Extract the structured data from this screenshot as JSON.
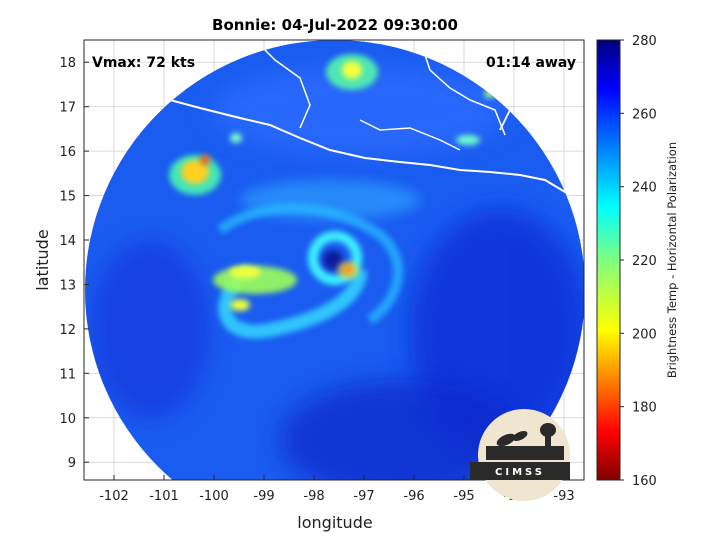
{
  "figure": {
    "title": "Bonnie: 04-Jul-2022 09:30:00",
    "xlabel": "longitude",
    "ylabel": "latitude",
    "annotations": {
      "vmax": "Vmax: 72 kts",
      "time_away": "01:14 away"
    },
    "colorbar": {
      "label": "Brightness Temp - Horizontal Polarization",
      "min": 160,
      "max": 280,
      "ticks": [
        "160",
        "180",
        "200",
        "220",
        "240",
        "260",
        "280"
      ],
      "colormap": "jet"
    },
    "logo_text": "CIMSS"
  },
  "chart_data": {
    "type": "heatmap",
    "title": "Bonnie: 04-Jul-2022 09:30:00",
    "xlabel": "longitude",
    "ylabel": "latitude",
    "xlim": [
      -102.6,
      -92.6
    ],
    "ylim": [
      8.6,
      18.5
    ],
    "xticks": [
      "-102",
      "-101",
      "-100",
      "-99",
      "-98",
      "-97",
      "-96",
      "-95",
      "-94",
      "-93"
    ],
    "yticks": [
      "9",
      "10",
      "11",
      "12",
      "13",
      "14",
      "15",
      "16",
      "17",
      "18"
    ],
    "grid": true,
    "background_value": 265,
    "storm_center": {
      "lon": -97.7,
      "lat": 13.6
    },
    "features": [
      {
        "name": "eye",
        "lon": -97.7,
        "lat": 13.6,
        "value": 262
      },
      {
        "name": "eyewall-cold-spot",
        "lon": -97.45,
        "lat": 13.2,
        "value": 185
      },
      {
        "name": "rainband-west",
        "lon": -99.5,
        "lat": 13.1,
        "value": 228
      },
      {
        "name": "convection-northwest",
        "lon": -100.5,
        "lat": 15.5,
        "value": 205
      },
      {
        "name": "land-warm-spot",
        "lon": -97.0,
        "lat": 18.0,
        "value": 220
      }
    ]
  },
  "colors": {
    "background": "#ffffff",
    "coast": "#ffffff",
    "grid": "#d9d9d9",
    "logo_bg": "#f0e6cf",
    "logo_dark": "#2a2a2a"
  }
}
